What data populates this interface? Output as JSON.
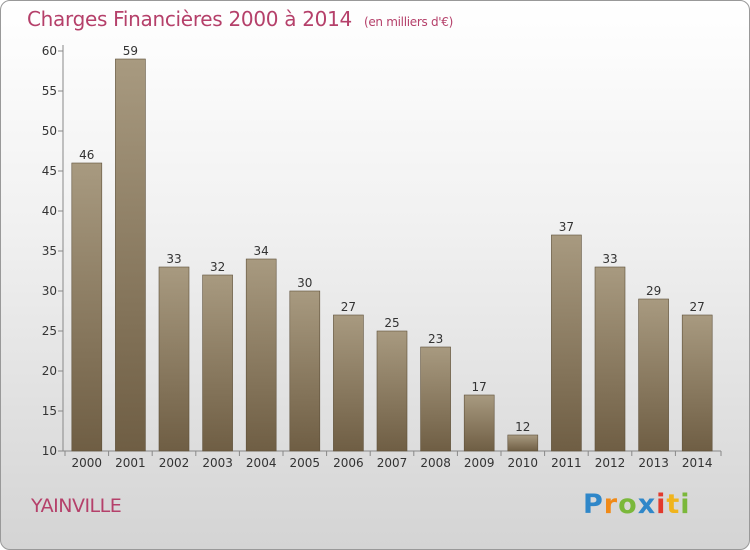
{
  "header": {
    "title": "Charges Financières 2000 à 2014",
    "subtitle": "(en milliers d'€)"
  },
  "footer": {
    "commune": "YAINVILLE",
    "brand": "Proxiti"
  },
  "colors": {
    "title": "#b5406a",
    "bar_top": "#a89a80",
    "bar_bottom": "#6f5e44"
  },
  "chart_data": {
    "type": "bar",
    "title": "Charges Financières 2000 à 2014",
    "subtitle": "(en milliers d'€)",
    "categories": [
      "2000",
      "2001",
      "2002",
      "2003",
      "2004",
      "2005",
      "2006",
      "2007",
      "2008",
      "2009",
      "2010",
      "2011",
      "2012",
      "2013",
      "2014"
    ],
    "values": [
      46,
      59,
      33,
      32,
      34,
      30,
      27,
      25,
      23,
      17,
      12,
      37,
      33,
      29,
      27
    ],
    "ylim": [
      10,
      60
    ],
    "yticks": [
      10,
      15,
      20,
      25,
      30,
      35,
      40,
      45,
      50,
      55,
      60
    ],
    "grid": false,
    "legend": "none"
  }
}
